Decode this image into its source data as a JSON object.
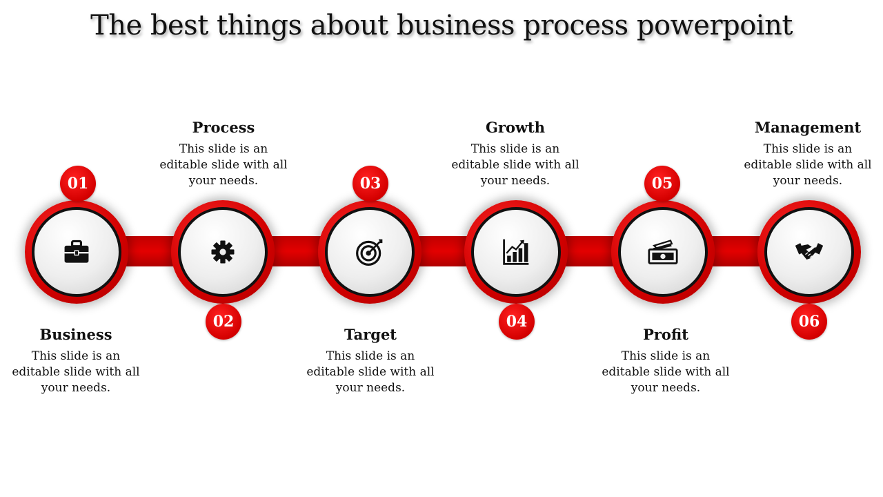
{
  "title": "The best things about business process powerpoint",
  "steps": [
    {
      "number": "01",
      "heading": "Business",
      "text": "This slide is an editable slide with all your needs.",
      "icon": "briefcase-icon"
    },
    {
      "number": "02",
      "heading": "Process",
      "text": "This slide is an editable slide with all your needs.",
      "icon": "gear-icon"
    },
    {
      "number": "03",
      "heading": "Target",
      "text": "This slide is an editable slide with all your needs.",
      "icon": "target-icon"
    },
    {
      "number": "04",
      "heading": "Growth",
      "text": "This slide is an editable slide with all your needs.",
      "icon": "growth-chart-icon"
    },
    {
      "number": "05",
      "heading": "Profit",
      "text": "This slide is an editable slide with all your needs.",
      "icon": "money-icon"
    },
    {
      "number": "06",
      "heading": "Management",
      "text": "This slide is an editable slide with all your needs.",
      "icon": "handshake-icon"
    }
  ],
  "colors": {
    "accent": "#e00000",
    "ring": "#111111",
    "text": "#111111"
  }
}
